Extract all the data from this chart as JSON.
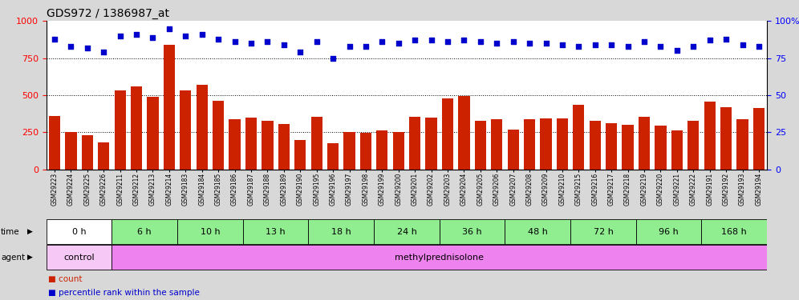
{
  "title": "GDS972 / 1386987_at",
  "samples": [
    "GSM29223",
    "GSM29224",
    "GSM29225",
    "GSM29226",
    "GSM29211",
    "GSM29212",
    "GSM29213",
    "GSM29214",
    "GSM29183",
    "GSM29184",
    "GSM29185",
    "GSM29186",
    "GSM29187",
    "GSM29188",
    "GSM29189",
    "GSM29190",
    "GSM29195",
    "GSM29196",
    "GSM29197",
    "GSM29198",
    "GSM29199",
    "GSM29200",
    "GSM29201",
    "GSM29202",
    "GSM29203",
    "GSM29204",
    "GSM29205",
    "GSM29206",
    "GSM29207",
    "GSM29208",
    "GSM29209",
    "GSM29210",
    "GSM29215",
    "GSM29216",
    "GSM29217",
    "GSM29218",
    "GSM29219",
    "GSM29220",
    "GSM29221",
    "GSM29222",
    "GSM29191",
    "GSM29192",
    "GSM29193",
    "GSM29194"
  ],
  "counts": [
    360,
    250,
    230,
    185,
    530,
    560,
    490,
    840,
    530,
    570,
    460,
    340,
    350,
    330,
    305,
    200,
    355,
    175,
    250,
    245,
    265,
    255,
    355,
    350,
    480,
    495,
    330,
    340,
    270,
    340,
    345,
    345,
    435,
    330,
    310,
    300,
    355,
    295,
    265,
    330,
    455,
    420,
    340,
    415
  ],
  "percentiles": [
    88,
    83,
    82,
    79,
    90,
    91,
    89,
    95,
    90,
    91,
    88,
    86,
    85,
    86,
    84,
    79,
    86,
    75,
    83,
    83,
    86,
    85,
    87,
    87,
    86,
    87,
    86,
    85,
    86,
    85,
    85,
    84,
    83,
    84,
    84,
    83,
    86,
    83,
    80,
    83,
    87,
    88,
    84,
    83
  ],
  "time_groups": [
    {
      "label": "0 h",
      "start": 0,
      "end": 4,
      "color": "#ffffff"
    },
    {
      "label": "6 h",
      "start": 4,
      "end": 8,
      "color": "#90ee90"
    },
    {
      "label": "10 h",
      "start": 8,
      "end": 12,
      "color": "#90ee90"
    },
    {
      "label": "13 h",
      "start": 12,
      "end": 16,
      "color": "#90ee90"
    },
    {
      "label": "18 h",
      "start": 16,
      "end": 20,
      "color": "#90ee90"
    },
    {
      "label": "24 h",
      "start": 20,
      "end": 24,
      "color": "#90ee90"
    },
    {
      "label": "36 h",
      "start": 24,
      "end": 28,
      "color": "#90ee90"
    },
    {
      "label": "48 h",
      "start": 28,
      "end": 32,
      "color": "#90ee90"
    },
    {
      "label": "72 h",
      "start": 32,
      "end": 36,
      "color": "#90ee90"
    },
    {
      "label": "96 h",
      "start": 36,
      "end": 40,
      "color": "#90ee90"
    },
    {
      "label": "168 h",
      "start": 40,
      "end": 44,
      "color": "#90ee90"
    }
  ],
  "bar_color": "#cc2200",
  "dot_color": "#0000cc",
  "ylim_left": [
    0,
    1000
  ],
  "ylim_right": [
    0,
    100
  ],
  "yticks_left": [
    0,
    250,
    500,
    750,
    1000
  ],
  "yticks_right": [
    0,
    25,
    50,
    75,
    100
  ],
  "fig_bg": "#d8d8d8",
  "plot_bg": "#ffffff",
  "control_color": "#f5c8f5",
  "methyl_color": "#ee82ee",
  "xtick_area_bg": "#c8c8c8"
}
